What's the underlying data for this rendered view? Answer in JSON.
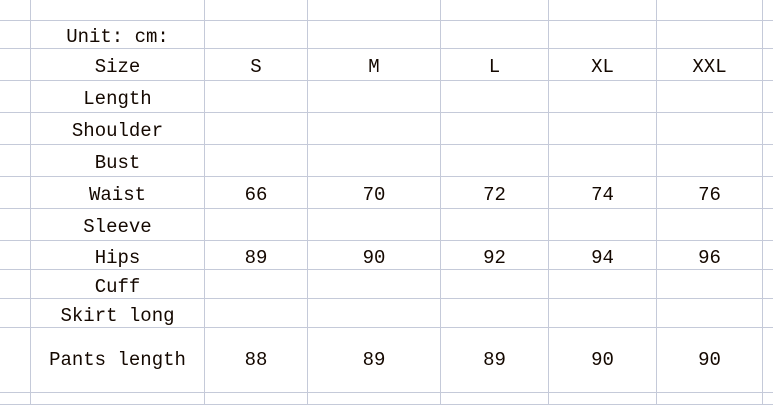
{
  "sheet": {
    "unit_label": "Unit: cm:",
    "header": {
      "label": "Size",
      "sizes": [
        "S",
        "M",
        "L",
        "XL",
        "XXL"
      ]
    },
    "rows": [
      {
        "label": "Length",
        "values": [
          "",
          "",
          "",
          "",
          ""
        ]
      },
      {
        "label": "Shoulder",
        "values": [
          "",
          "",
          "",
          "",
          ""
        ]
      },
      {
        "label": "Bust",
        "values": [
          "",
          "",
          "",
          "",
          ""
        ]
      },
      {
        "label": "Waist",
        "values": [
          "66",
          "70",
          "72",
          "74",
          "76"
        ]
      },
      {
        "label": "Sleeve",
        "values": [
          "",
          "",
          "",
          "",
          ""
        ]
      },
      {
        "label": "Hips",
        "values": [
          "89",
          "90",
          "92",
          "94",
          "96"
        ]
      },
      {
        "label": "Cuff",
        "values": [
          "",
          "",
          "",
          "",
          ""
        ]
      },
      {
        "label": "Skirt long",
        "values": [
          "",
          "",
          "",
          "",
          ""
        ]
      },
      {
        "label": "Pants length",
        "values": [
          "88",
          "89",
          "89",
          "90",
          "90"
        ]
      }
    ],
    "grid_color": "#c5cad9"
  }
}
